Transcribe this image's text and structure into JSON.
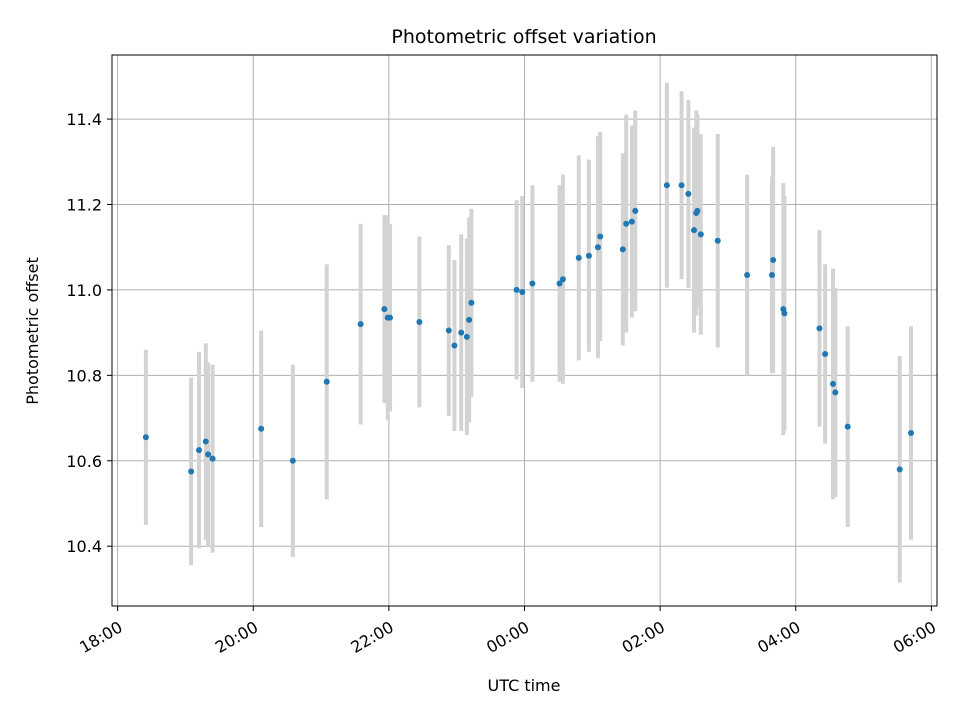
{
  "chart_data": {
    "type": "scatter",
    "title": "Photometric offset variation",
    "xlabel": "UTC time",
    "ylabel": "Photometric offset",
    "grid": true,
    "x_start": "18:00",
    "x_end": "06:00",
    "xlim": [
      "17:55",
      "06:05"
    ],
    "ylim": [
      10.26,
      11.55
    ],
    "x_ticks": [
      "18:00",
      "20:00",
      "22:00",
      "00:00",
      "02:00",
      "04:00",
      "06:00"
    ],
    "y_ticks": [
      "10.4",
      "10.6",
      "10.8",
      "11.0",
      "11.2",
      "11.4"
    ],
    "colors": {
      "point": "#1f77b4",
      "errorbar": "#d3d3d3",
      "grid": "#b0b0b0"
    },
    "series": [
      {
        "x": [
          "18:25",
          "19:05",
          "19:12",
          "19:18",
          "19:20",
          "19:24",
          "20:07",
          "20:35",
          "21:05",
          "21:35",
          "21:56",
          "21:59",
          "22:01",
          "22:27",
          "22:53",
          "22:58",
          "23:04",
          "23:09",
          "23:11",
          "23:13",
          "23:53",
          "23:58",
          "00:07",
          "00:31",
          "00:34",
          "00:48",
          "00:57",
          "01:05",
          "01:07",
          "01:27",
          "01:30",
          "01:35",
          "01:38",
          "02:06",
          "02:19",
          "02:25",
          "02:30",
          "02:32",
          "02:33",
          "02:36",
          "02:51",
          "03:17",
          "03:39",
          "03:40",
          "03:49",
          "03:50",
          "04:21",
          "04:26",
          "04:33",
          "04:35",
          "04:46",
          "05:32",
          "05:42"
        ],
        "y": [
          10.655,
          10.575,
          10.625,
          10.645,
          10.615,
          10.605,
          10.675,
          10.6,
          10.785,
          10.92,
          10.955,
          10.935,
          10.935,
          10.925,
          10.905,
          10.87,
          10.9,
          10.89,
          10.93,
          10.97,
          11.0,
          10.995,
          11.015,
          11.015,
          11.025,
          11.075,
          11.08,
          11.1,
          11.125,
          11.095,
          11.155,
          11.16,
          11.185,
          11.245,
          11.245,
          11.225,
          11.14,
          11.18,
          11.185,
          11.13,
          11.115,
          11.035,
          11.035,
          11.07,
          10.955,
          10.945,
          10.91,
          10.85,
          10.78,
          10.76,
          10.68,
          10.58,
          10.665
        ],
        "err": [
          0.205,
          0.22,
          0.23,
          0.23,
          0.215,
          0.22,
          0.23,
          0.225,
          0.275,
          0.235,
          0.22,
          0.24,
          0.22,
          0.2,
          0.2,
          0.2,
          0.23,
          0.23,
          0.24,
          0.22,
          0.21,
          0.225,
          0.23,
          0.23,
          0.245,
          0.24,
          0.225,
          0.26,
          0.245,
          0.225,
          0.255,
          0.225,
          0.235,
          0.24,
          0.22,
          0.22,
          0.24,
          0.24,
          0.225,
          0.235,
          0.25,
          0.235,
          0.23,
          0.265,
          0.295,
          0.275,
          0.23,
          0.21,
          0.27,
          0.245,
          0.235,
          0.265,
          0.25
        ]
      }
    ]
  }
}
